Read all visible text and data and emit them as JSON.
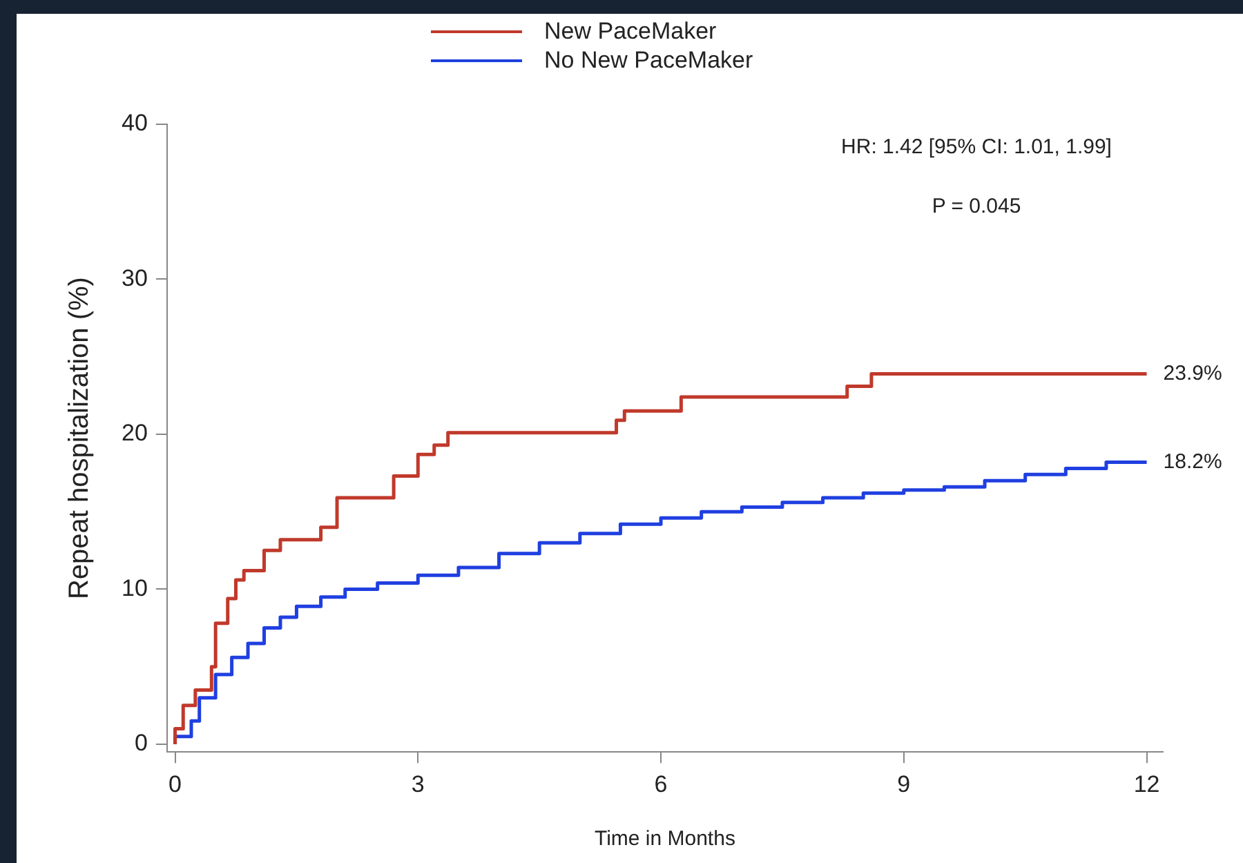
{
  "chart_data": {
    "type": "step",
    "xlabel": "Time in Months",
    "ylabel": "Repeat hospitalization (%)",
    "xlim": [
      -0.1,
      12.2
    ],
    "ylim": [
      -0.5,
      40
    ],
    "xticks": [
      0,
      3,
      6,
      9,
      12
    ],
    "yticks": [
      0,
      10,
      20,
      30,
      40
    ],
    "grid": false,
    "legend": "top",
    "marker": "none",
    "line_style": "solid",
    "series": [
      {
        "name": "New PaceMaker",
        "color": "#c0392b",
        "x": [
          0,
          0.1,
          0.25,
          0.45,
          0.5,
          0.65,
          0.75,
          0.85,
          1.1,
          1.3,
          1.8,
          2.0,
          2.7,
          3.0,
          3.2,
          3.37,
          5.45,
          5.55,
          6.25,
          8.3,
          8.6,
          11.9,
          12
        ],
        "values": [
          0,
          1,
          2.5,
          3.5,
          5,
          7.8,
          9.4,
          10.6,
          11.2,
          12.5,
          13.2,
          14,
          15.9,
          17.3,
          18.7,
          19.3,
          20.1,
          20.9,
          21.5,
          22.4,
          23.1,
          23.9,
          23.9
        ]
      },
      {
        "name": "No New PaceMaker",
        "color": "#1f3fe0",
        "x": [
          0,
          0.2,
          0.3,
          0.5,
          0.7,
          0.9,
          1.1,
          1.3,
          1.5,
          1.8,
          2.1,
          2.5,
          3.0,
          3.5,
          4.0,
          4.5,
          5.0,
          5.5,
          6.0,
          6.5,
          7.0,
          7.5,
          8.0,
          8.5,
          9.0,
          9.5,
          10.0,
          10.5,
          11.0,
          11.5,
          12
        ],
        "values": [
          0,
          0.5,
          1.5,
          3,
          4.5,
          5.6,
          6.5,
          7.5,
          8.2,
          8.9,
          9.5,
          10,
          10.4,
          10.9,
          11.4,
          12.3,
          13,
          13.6,
          14.2,
          14.6,
          15,
          15.3,
          15.6,
          15.9,
          16.2,
          16.4,
          16.6,
          17,
          17.4,
          17.8,
          18.2
        ]
      }
    ],
    "annotations": [
      "HR: 1.42 [95% CI: 1.01, 1.99]",
      "P = 0.045",
      {
        "text": "23.9%",
        "x": 12,
        "y": 23.9
      },
      {
        "text": "18.2%",
        "x": 12,
        "y": 18.2
      }
    ]
  }
}
